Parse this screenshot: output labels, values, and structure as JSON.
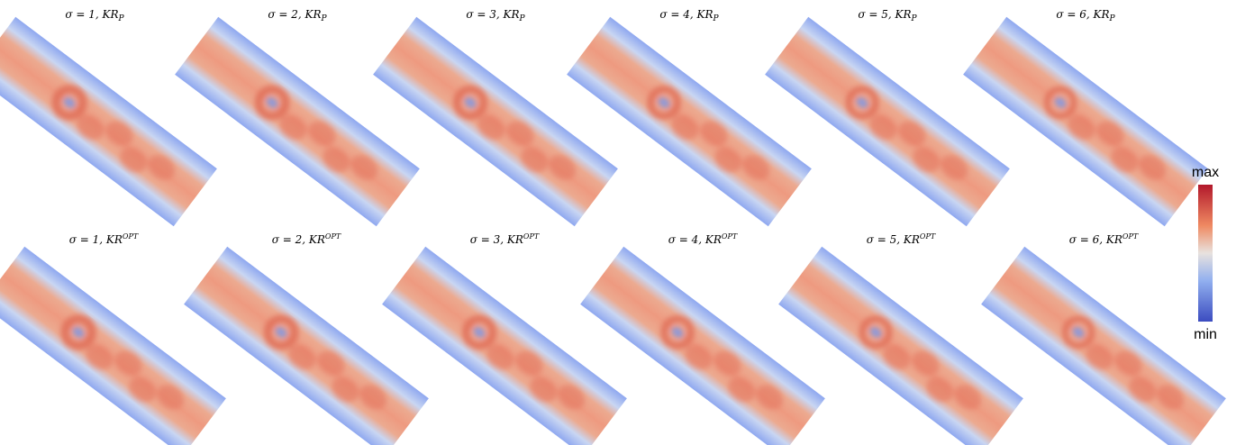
{
  "rows": [
    {
      "panels": [
        {
          "label": "σ = 1, KR",
          "sub": "P"
        },
        {
          "label": "σ = 2, KR",
          "sub": "P"
        },
        {
          "label": "σ = 3, KR",
          "sub": "P"
        },
        {
          "label": "σ = 4, KR",
          "sub": "P"
        },
        {
          "label": "σ = 5, KR",
          "sub": "P"
        },
        {
          "label": "σ = 6, KR",
          "sub": "P"
        }
      ]
    },
    {
      "panels": [
        {
          "label": "σ = 1, KR",
          "sup": "OPT"
        },
        {
          "label": "σ = 2, KR",
          "sup": "OPT"
        },
        {
          "label": "σ = 3, KR",
          "sup": "OPT"
        },
        {
          "label": "σ = 4, KR",
          "sup": "OPT"
        },
        {
          "label": "σ = 5, KR",
          "sup": "OPT"
        },
        {
          "label": "σ = 6, KR",
          "sup": "OPT"
        }
      ]
    }
  ],
  "colorbar": {
    "max": "max",
    "min": "min"
  }
}
